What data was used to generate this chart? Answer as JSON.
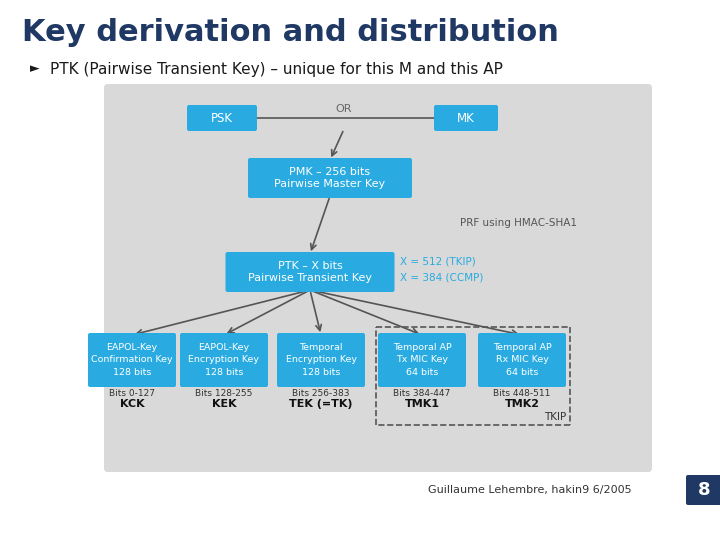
{
  "title": "Key derivation and distribution",
  "subtitle": "PTK (Pairwise Transient Key) – unique for this M and this AP",
  "slide_bg": "#ffffff",
  "diag_bg": "#d9d9d9",
  "box_color": "#29abe2",
  "box_text_color": "#ffffff",
  "title_color": "#1f3864",
  "subtitle_color": "#1a1a1a",
  "footer": "Guillaume Lehembre, hakin9 6/2005",
  "page_num": "8",
  "page_num_bg": "#1f3864",
  "arrow_color": "#555555",
  "label_color": "#333333",
  "cyan_text": "#29abe2",
  "or_color": "#666666",
  "prf_color": "#555555"
}
